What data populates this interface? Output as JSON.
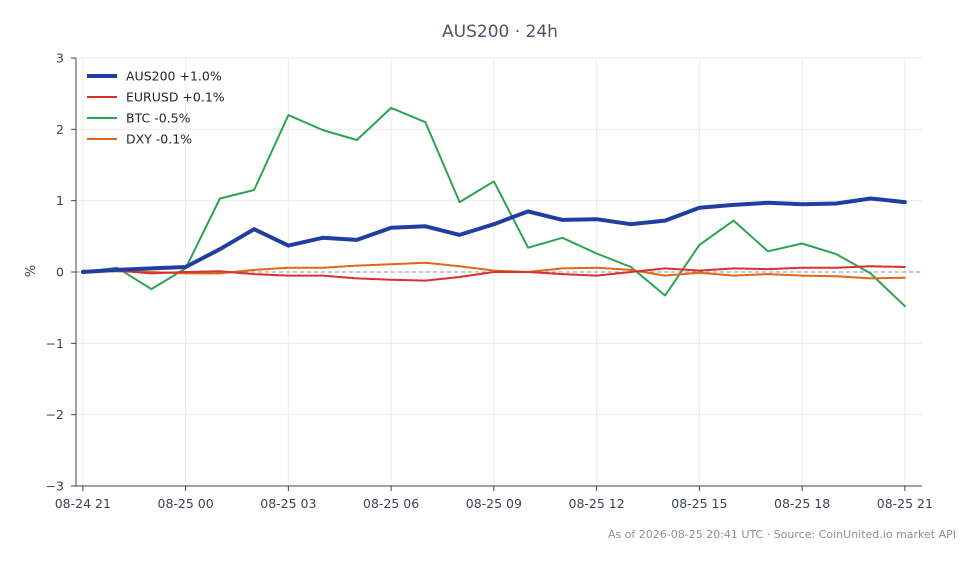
{
  "chart_data": {
    "type": "line",
    "title": "AUS200 · 24h",
    "xlabel": "",
    "ylabel": "%",
    "ylim": [
      -3,
      3
    ],
    "yticks": [
      3,
      2,
      1,
      0,
      -1,
      -2,
      -3
    ],
    "ytick_labels": [
      "3",
      "2",
      "1",
      "0",
      "−1",
      "−2",
      "−3"
    ],
    "xticks": [
      "08-24 21",
      "08-25 00",
      "08-25 03",
      "08-25 06",
      "08-25 09",
      "08-25 12",
      "08-25 15",
      "08-25 18",
      "08-25 21"
    ],
    "xlim_hours": [
      -1.2,
      23.5
    ],
    "grid": true,
    "legend_position": "top-left",
    "zero_line": true,
    "x_hours": [
      -1,
      0,
      1,
      2,
      3,
      4,
      5,
      6,
      7,
      8,
      9,
      10,
      11,
      12,
      13,
      14,
      15,
      16,
      17,
      18,
      19,
      20,
      21,
      22,
      23
    ],
    "series": [
      {
        "name": "AUS200 +1.0%",
        "color": "#1f3fa0",
        "width": 4,
        "values": [
          0.0,
          0.03,
          0.05,
          0.07,
          0.32,
          0.6,
          0.37,
          0.48,
          0.45,
          0.62,
          0.64,
          0.52,
          0.67,
          0.85,
          0.73,
          0.74,
          0.67,
          0.72,
          0.9,
          0.94,
          0.97,
          0.95,
          0.96,
          1.03,
          0.98
        ]
      },
      {
        "name": "EURUSD +0.1%",
        "color": "#d7312d",
        "width": 2,
        "values": [
          0.0,
          0.02,
          -0.02,
          0.0,
          0.01,
          -0.03,
          -0.05,
          -0.05,
          -0.09,
          -0.11,
          -0.12,
          -0.07,
          0.0,
          0.0,
          -0.03,
          -0.05,
          0.0,
          0.05,
          0.02,
          0.05,
          0.04,
          0.06,
          0.06,
          0.08,
          0.07
        ]
      },
      {
        "name": "BTC -0.5%",
        "color": "#2ca44f",
        "width": 2,
        "values": [
          0.0,
          0.06,
          -0.24,
          0.05,
          1.03,
          1.15,
          2.2,
          1.99,
          1.85,
          2.3,
          2.1,
          0.98,
          1.27,
          0.34,
          0.48,
          0.26,
          0.07,
          -0.33,
          0.38,
          0.72,
          0.29,
          0.4,
          0.25,
          -0.02,
          -0.48
        ]
      },
      {
        "name": "DXY -0.1%",
        "color": "#e0661a",
        "width": 2,
        "values": [
          0.02,
          0.01,
          0.0,
          -0.02,
          -0.02,
          0.03,
          0.06,
          0.06,
          0.09,
          0.11,
          0.13,
          0.08,
          0.02,
          0.0,
          0.05,
          0.06,
          0.03,
          -0.05,
          -0.01,
          -0.05,
          -0.03,
          -0.05,
          -0.06,
          -0.09,
          -0.08
        ]
      }
    ],
    "footer": "As of 2026-08-25 20:41 UTC · Source: CoinUnited.io market API"
  }
}
